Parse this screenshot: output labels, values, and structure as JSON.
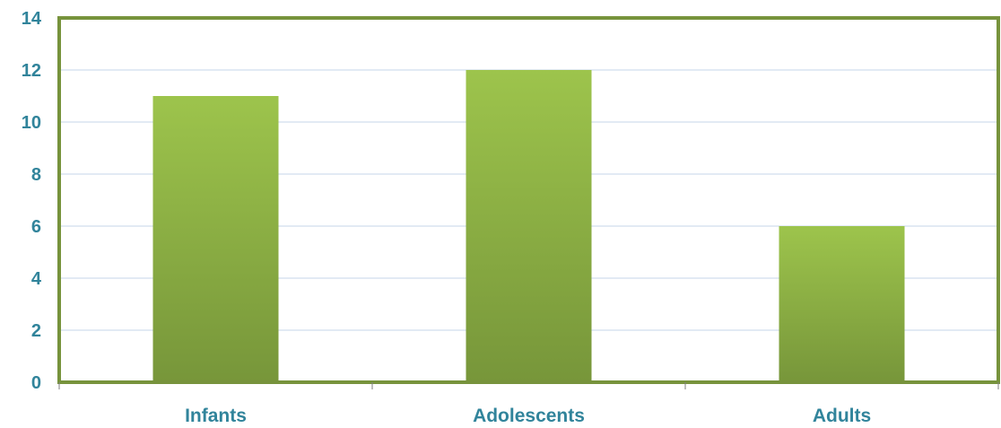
{
  "chart_data": {
    "type": "bar",
    "categories": [
      "Infants",
      "Adolescents",
      "Adults"
    ],
    "values": [
      11,
      12,
      6
    ],
    "title": "",
    "xlabel": "",
    "ylabel": "",
    "ylim": [
      0,
      14
    ],
    "yticks": [
      0,
      2,
      4,
      6,
      8,
      10,
      12,
      14
    ],
    "grid": true,
    "legend": "none"
  },
  "colors": {
    "bar_top": "#9dc44c",
    "bar_bottom": "#77963a",
    "plot_border": "#77933c",
    "gridline": "#c6d4e8",
    "label_text": "#31849b",
    "axis_tick": "#7f7f7f"
  }
}
